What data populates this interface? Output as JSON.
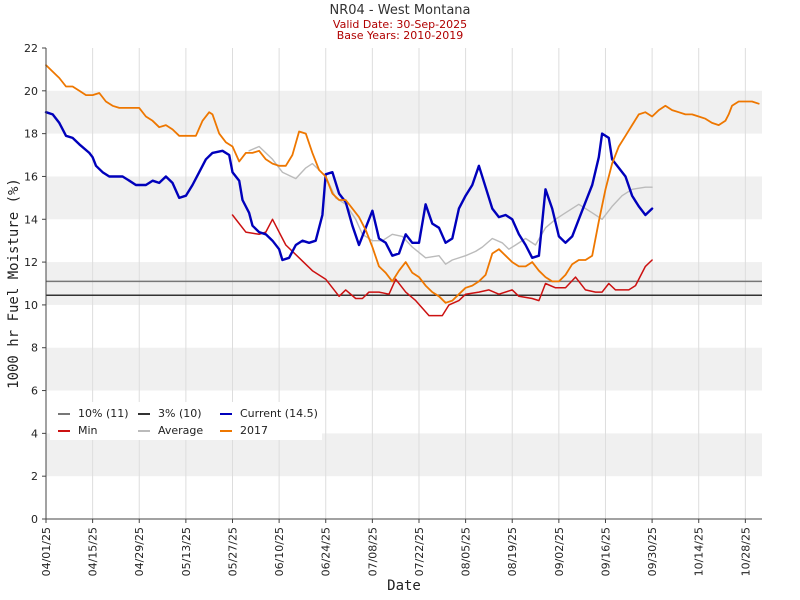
{
  "header": {
    "title": "NR04 - West Montana",
    "valid_date": "Valid Date: 30-Sep-2025",
    "base_years": "Base Years: 2010-2019"
  },
  "chart_data": {
    "type": "line",
    "xlabel": "Date",
    "ylabel": "1000 hr Fuel Moisture (%)",
    "ylim": [
      0,
      22
    ],
    "y_ticks": [
      0,
      2,
      4,
      6,
      8,
      10,
      12,
      14,
      16,
      18,
      20,
      22
    ],
    "x_range_days": [
      0,
      215
    ],
    "x_ticks": [
      {
        "day": 0,
        "label": "04/01/25"
      },
      {
        "day": 14,
        "label": "04/15/25"
      },
      {
        "day": 28,
        "label": "04/29/25"
      },
      {
        "day": 42,
        "label": "05/13/25"
      },
      {
        "day": 56,
        "label": "05/27/25"
      },
      {
        "day": 70,
        "label": "06/10/25"
      },
      {
        "day": 84,
        "label": "06/24/25"
      },
      {
        "day": 98,
        "label": "07/08/25"
      },
      {
        "day": 112,
        "label": "07/22/25"
      },
      {
        "day": 126,
        "label": "08/05/25"
      },
      {
        "day": 140,
        "label": "08/19/25"
      },
      {
        "day": 154,
        "label": "09/02/25"
      },
      {
        "day": 168,
        "label": "09/16/25"
      },
      {
        "day": 182,
        "label": "09/30/25"
      },
      {
        "day": 196,
        "label": "10/14/25"
      },
      {
        "day": 210,
        "label": "10/28/25"
      }
    ],
    "thresholds": [
      {
        "name": "10% (11)",
        "value": 11.1,
        "color": "#777777"
      },
      {
        "name": "3% (10)",
        "value": 10.45,
        "color": "#333333"
      }
    ],
    "series": [
      {
        "name": "Min",
        "color": "#cc1111",
        "points": [
          [
            56,
            14.2
          ],
          [
            60,
            13.4
          ],
          [
            64,
            13.3
          ],
          [
            66,
            13.4
          ],
          [
            68,
            14.0
          ],
          [
            72,
            12.8
          ],
          [
            76,
            12.2
          ],
          [
            80,
            11.6
          ],
          [
            84,
            11.2
          ],
          [
            88,
            10.4
          ],
          [
            90,
            10.7
          ],
          [
            93,
            10.3
          ],
          [
            95,
            10.3
          ],
          [
            97,
            10.6
          ],
          [
            100,
            10.6
          ],
          [
            103,
            10.5
          ],
          [
            105,
            11.2
          ],
          [
            108,
            10.6
          ],
          [
            111,
            10.2
          ],
          [
            115,
            9.5
          ],
          [
            119,
            9.5
          ],
          [
            121,
            10.0
          ],
          [
            124,
            10.2
          ],
          [
            126,
            10.5
          ],
          [
            130,
            10.6
          ],
          [
            133,
            10.7
          ],
          [
            136,
            10.5
          ],
          [
            140,
            10.7
          ],
          [
            142,
            10.4
          ],
          [
            146,
            10.3
          ],
          [
            148,
            10.2
          ],
          [
            150,
            11.0
          ],
          [
            153,
            10.8
          ],
          [
            156,
            10.8
          ],
          [
            159,
            11.3
          ],
          [
            162,
            10.7
          ],
          [
            165,
            10.6
          ],
          [
            167,
            10.6
          ],
          [
            169,
            11.0
          ],
          [
            171,
            10.7
          ],
          [
            175,
            10.7
          ],
          [
            177,
            10.9
          ],
          [
            180,
            11.8
          ],
          [
            182,
            12.1
          ]
        ]
      },
      {
        "name": "Average",
        "color": "#bbbbbb",
        "points": [
          [
            61,
            17.2
          ],
          [
            64,
            17.4
          ],
          [
            68,
            16.8
          ],
          [
            71,
            16.2
          ],
          [
            75,
            15.9
          ],
          [
            78,
            16.4
          ],
          [
            80,
            16.6
          ],
          [
            82,
            16.3
          ],
          [
            84,
            16.0
          ],
          [
            87,
            15.0
          ],
          [
            90,
            14.7
          ],
          [
            93,
            14.0
          ],
          [
            95,
            13.3
          ],
          [
            98,
            13.0
          ],
          [
            101,
            13.0
          ],
          [
            104,
            13.3
          ],
          [
            107,
            13.2
          ],
          [
            110,
            12.7
          ],
          [
            114,
            12.2
          ],
          [
            118,
            12.3
          ],
          [
            120,
            11.9
          ],
          [
            122,
            12.1
          ],
          [
            126,
            12.3
          ],
          [
            129,
            12.5
          ],
          [
            131,
            12.7
          ],
          [
            134,
            13.1
          ],
          [
            137,
            12.9
          ],
          [
            139,
            12.6
          ],
          [
            141,
            12.8
          ],
          [
            144,
            13.1
          ],
          [
            147,
            12.8
          ],
          [
            150,
            13.6
          ],
          [
            153,
            14.0
          ],
          [
            156,
            14.3
          ],
          [
            160,
            14.7
          ],
          [
            164,
            14.3
          ],
          [
            167,
            14.0
          ],
          [
            170,
            14.6
          ],
          [
            173,
            15.1
          ],
          [
            176,
            15.4
          ],
          [
            180,
            15.5
          ],
          [
            182,
            15.5
          ]
        ]
      },
      {
        "name": "Current (14.5)",
        "color": "#0000bb",
        "points": [
          [
            0,
            19.0
          ],
          [
            2,
            18.9
          ],
          [
            4,
            18.5
          ],
          [
            6,
            17.9
          ],
          [
            8,
            17.8
          ],
          [
            10,
            17.5
          ],
          [
            13,
            17.1
          ],
          [
            14,
            16.9
          ],
          [
            15,
            16.5
          ],
          [
            17,
            16.2
          ],
          [
            19,
            16.0
          ],
          [
            23,
            16.0
          ],
          [
            25,
            15.8
          ],
          [
            27,
            15.6
          ],
          [
            30,
            15.6
          ],
          [
            32,
            15.8
          ],
          [
            34,
            15.7
          ],
          [
            36,
            16.0
          ],
          [
            38,
            15.7
          ],
          [
            40,
            15.0
          ],
          [
            42,
            15.1
          ],
          [
            44,
            15.6
          ],
          [
            46,
            16.2
          ],
          [
            48,
            16.8
          ],
          [
            50,
            17.1
          ],
          [
            53,
            17.2
          ],
          [
            55,
            17.0
          ],
          [
            56,
            16.2
          ],
          [
            58,
            15.8
          ],
          [
            59,
            14.9
          ],
          [
            61,
            14.3
          ],
          [
            62,
            13.7
          ],
          [
            64,
            13.4
          ],
          [
            66,
            13.3
          ],
          [
            68,
            13.0
          ],
          [
            70,
            12.6
          ],
          [
            71,
            12.1
          ],
          [
            73,
            12.2
          ],
          [
            75,
            12.8
          ],
          [
            77,
            13.0
          ],
          [
            79,
            12.9
          ],
          [
            81,
            13.0
          ],
          [
            83,
            14.2
          ],
          [
            84,
            16.1
          ],
          [
            86,
            16.2
          ],
          [
            88,
            15.2
          ],
          [
            90,
            14.8
          ],
          [
            92,
            13.7
          ],
          [
            94,
            12.8
          ],
          [
            96,
            13.6
          ],
          [
            98,
            14.4
          ],
          [
            100,
            13.1
          ],
          [
            102,
            12.9
          ],
          [
            104,
            12.3
          ],
          [
            106,
            12.4
          ],
          [
            108,
            13.3
          ],
          [
            110,
            12.9
          ],
          [
            112,
            12.9
          ],
          [
            114,
            14.7
          ],
          [
            116,
            13.8
          ],
          [
            118,
            13.6
          ],
          [
            120,
            12.9
          ],
          [
            122,
            13.1
          ],
          [
            124,
            14.5
          ],
          [
            126,
            15.1
          ],
          [
            128,
            15.6
          ],
          [
            130,
            16.5
          ],
          [
            132,
            15.5
          ],
          [
            134,
            14.5
          ],
          [
            136,
            14.1
          ],
          [
            138,
            14.2
          ],
          [
            140,
            14.0
          ],
          [
            142,
            13.3
          ],
          [
            144,
            12.8
          ],
          [
            146,
            12.2
          ],
          [
            148,
            12.3
          ],
          [
            150,
            15.4
          ],
          [
            152,
            14.5
          ],
          [
            154,
            13.2
          ],
          [
            156,
            12.9
          ],
          [
            158,
            13.2
          ],
          [
            160,
            14.0
          ],
          [
            162,
            14.8
          ],
          [
            164,
            15.6
          ],
          [
            166,
            16.9
          ],
          [
            167,
            18.0
          ],
          [
            169,
            17.8
          ],
          [
            170,
            16.8
          ],
          [
            172,
            16.4
          ],
          [
            174,
            16.0
          ],
          [
            176,
            15.1
          ],
          [
            178,
            14.6
          ],
          [
            180,
            14.2
          ],
          [
            182,
            14.5
          ]
        ]
      },
      {
        "name": "2017",
        "color": "#ee7700",
        "points": [
          [
            0,
            21.2
          ],
          [
            2,
            20.9
          ],
          [
            4,
            20.6
          ],
          [
            6,
            20.2
          ],
          [
            8,
            20.2
          ],
          [
            10,
            20.0
          ],
          [
            12,
            19.8
          ],
          [
            14,
            19.8
          ],
          [
            16,
            19.9
          ],
          [
            18,
            19.5
          ],
          [
            20,
            19.3
          ],
          [
            22,
            19.2
          ],
          [
            24,
            19.2
          ],
          [
            28,
            19.2
          ],
          [
            30,
            18.8
          ],
          [
            32,
            18.6
          ],
          [
            34,
            18.3
          ],
          [
            36,
            18.4
          ],
          [
            38,
            18.2
          ],
          [
            40,
            17.9
          ],
          [
            42,
            17.9
          ],
          [
            45,
            17.9
          ],
          [
            47,
            18.6
          ],
          [
            49,
            19.0
          ],
          [
            50,
            18.9
          ],
          [
            52,
            18.0
          ],
          [
            54,
            17.6
          ],
          [
            56,
            17.4
          ],
          [
            58,
            16.7
          ],
          [
            60,
            17.1
          ],
          [
            62,
            17.1
          ],
          [
            64,
            17.2
          ],
          [
            66,
            16.8
          ],
          [
            68,
            16.6
          ],
          [
            70,
            16.5
          ],
          [
            72,
            16.5
          ],
          [
            74,
            17.0
          ],
          [
            76,
            18.1
          ],
          [
            78,
            18.0
          ],
          [
            80,
            17.1
          ],
          [
            82,
            16.3
          ],
          [
            84,
            16.0
          ],
          [
            86,
            15.2
          ],
          [
            88,
            14.9
          ],
          [
            90,
            14.9
          ],
          [
            92,
            14.5
          ],
          [
            94,
            14.1
          ],
          [
            96,
            13.5
          ],
          [
            98,
            12.7
          ],
          [
            100,
            11.8
          ],
          [
            102,
            11.5
          ],
          [
            104,
            11.1
          ],
          [
            106,
            11.6
          ],
          [
            108,
            12.0
          ],
          [
            110,
            11.5
          ],
          [
            112,
            11.3
          ],
          [
            114,
            10.9
          ],
          [
            116,
            10.6
          ],
          [
            118,
            10.4
          ],
          [
            120,
            10.1
          ],
          [
            122,
            10.2
          ],
          [
            124,
            10.5
          ],
          [
            126,
            10.8
          ],
          [
            128,
            10.9
          ],
          [
            130,
            11.1
          ],
          [
            132,
            11.4
          ],
          [
            134,
            12.4
          ],
          [
            136,
            12.6
          ],
          [
            138,
            12.3
          ],
          [
            140,
            12.0
          ],
          [
            142,
            11.8
          ],
          [
            144,
            11.8
          ],
          [
            146,
            12.0
          ],
          [
            148,
            11.6
          ],
          [
            150,
            11.3
          ],
          [
            152,
            11.1
          ],
          [
            154,
            11.1
          ],
          [
            156,
            11.4
          ],
          [
            158,
            11.9
          ],
          [
            160,
            12.1
          ],
          [
            162,
            12.1
          ],
          [
            164,
            12.3
          ],
          [
            166,
            13.9
          ],
          [
            168,
            15.4
          ],
          [
            170,
            16.6
          ],
          [
            172,
            17.4
          ],
          [
            174,
            17.9
          ],
          [
            176,
            18.4
          ],
          [
            178,
            18.9
          ],
          [
            180,
            19.0
          ],
          [
            182,
            18.8
          ],
          [
            184,
            19.1
          ],
          [
            186,
            19.3
          ],
          [
            188,
            19.1
          ],
          [
            190,
            19.0
          ],
          [
            192,
            18.9
          ],
          [
            194,
            18.9
          ],
          [
            196,
            18.8
          ],
          [
            198,
            18.7
          ],
          [
            200,
            18.5
          ],
          [
            202,
            18.4
          ],
          [
            204,
            18.6
          ],
          [
            205,
            18.9
          ],
          [
            206,
            19.3
          ],
          [
            208,
            19.5
          ],
          [
            212,
            19.5
          ],
          [
            214,
            19.4
          ]
        ]
      }
    ],
    "legend": {
      "placement": "lower-left",
      "items": [
        {
          "label": "10% (11)",
          "color": "#777777"
        },
        {
          "label": "3% (10)",
          "color": "#333333"
        },
        {
          "label": "Current (14.5)",
          "color": "#0000bb"
        },
        {
          "label": "Min",
          "color": "#cc1111"
        },
        {
          "label": "Average",
          "color": "#bbbbbb"
        },
        {
          "label": "2017",
          "color": "#ee7700"
        }
      ]
    }
  }
}
